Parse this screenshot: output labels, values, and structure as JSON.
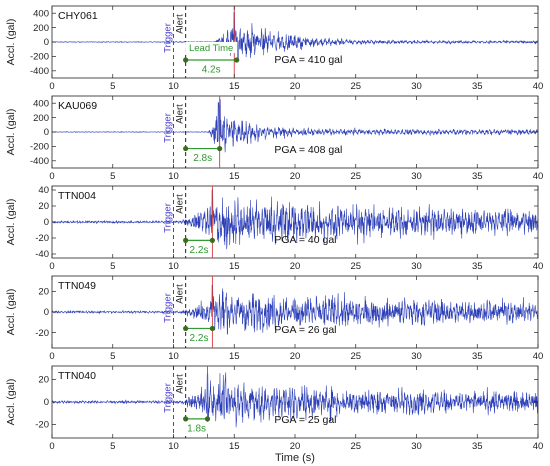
{
  "chart_data": {
    "type": "line",
    "xlabel": "Time (s)",
    "ylabel": "Accl. (gal)",
    "xlim": [
      0,
      40
    ],
    "xticks": [
      0,
      5,
      10,
      15,
      20,
      25,
      30,
      35,
      40
    ],
    "colors": {
      "waveform": "#2c3fb8",
      "trigger_line": "#4a3fd1",
      "alert_line": "#222222",
      "pga_line": "#d23a3a",
      "lead_time": "#2f9a2f"
    },
    "trigger_label": "Trigger",
    "alert_label": "Alert",
    "panels": [
      {
        "station": "CHY061",
        "ylim": [
          -500,
          500
        ],
        "yticks": [
          400,
          200,
          0,
          -200,
          -400
        ],
        "trigger_time": 10,
        "alert_time": 11,
        "pga_time": 15,
        "pga_text": "PGA = 410 gal",
        "lead_time": {
          "start": 11,
          "end": 15.2,
          "value_text": "4.2s",
          "title": "Lead Time",
          "y": -250
        },
        "waveform": {
          "noise": 6,
          "onset": 13.2,
          "peak_time": 15,
          "peak": 410,
          "rise": 1.6,
          "decay": 3.5,
          "tail": 18,
          "period": 0.35
        }
      },
      {
        "station": "KAU069",
        "ylim": [
          -500,
          500
        ],
        "yticks": [
          400,
          200,
          0,
          -200,
          -400
        ],
        "trigger_time": 10,
        "alert_time": 11,
        "pga_time": 13.8,
        "pga_text": "PGA = 408 gal",
        "lead_time": {
          "start": 11,
          "end": 13.8,
          "value_text": "2.8s",
          "title": "",
          "y": -230
        },
        "waveform": {
          "noise": 5,
          "onset": 12.8,
          "peak_time": 13.7,
          "peak": 408,
          "rise": 0.8,
          "decay": 2.5,
          "tail": 40,
          "period": 0.3
        }
      },
      {
        "station": "TTN004",
        "ylim": [
          -45,
          45
        ],
        "yticks": [
          40,
          20,
          0,
          -20,
          -40
        ],
        "trigger_time": 10,
        "alert_time": 11,
        "pga_time": 13.2,
        "pga_text": "PGA = 40 gal",
        "lead_time": {
          "start": 11,
          "end": 13.2,
          "value_text": "2.2s",
          "title": "",
          "y": -23
        },
        "waveform": {
          "noise": 1.5,
          "onset": 10.5,
          "peak_time": 13.2,
          "peak": 40,
          "rise": 2.5,
          "decay": 15,
          "tail": 12,
          "period": 0.25
        }
      },
      {
        "station": "TTN049",
        "ylim": [
          -35,
          35
        ],
        "yticks": [
          20,
          0,
          -20
        ],
        "trigger_time": 10,
        "alert_time": 11,
        "pga_time": 13.2,
        "pga_text": "PGA = 26 gal",
        "lead_time": {
          "start": 11,
          "end": 13.2,
          "value_text": "2.2s",
          "title": "",
          "y": -16
        },
        "waveform": {
          "noise": 1.2,
          "onset": 10.5,
          "peak_time": 13.2,
          "peak": 26,
          "rise": 2.5,
          "decay": 14,
          "tail": 9,
          "period": 0.25
        }
      },
      {
        "station": "TTN040",
        "ylim": [
          -32,
          32
        ],
        "yticks": [
          20,
          0,
          -20
        ],
        "trigger_time": 10,
        "alert_time": 11,
        "pga_time": 12.8,
        "pga_text": "PGA = 25 gal",
        "lead_time": {
          "start": 11,
          "end": 12.8,
          "value_text": "1.8s",
          "title": "",
          "y": -15
        },
        "waveform": {
          "noise": 1.2,
          "onset": 10.5,
          "peak_time": 12.8,
          "peak": 25,
          "rise": 2.0,
          "decay": 12,
          "tail": 8,
          "period": 0.25
        }
      }
    ]
  }
}
